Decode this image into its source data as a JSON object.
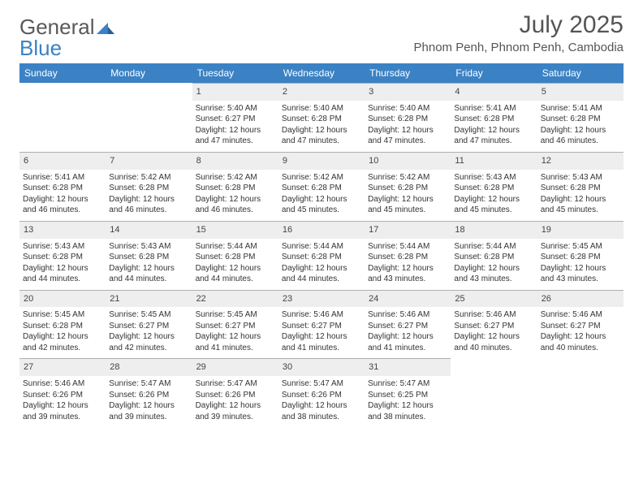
{
  "logo": {
    "line1": "General",
    "line2": "Blue"
  },
  "header": {
    "title": "July 2025",
    "location": "Phnom Penh, Phnom Penh, Cambodia"
  },
  "colors": {
    "header_bg": "#3b82c4",
    "header_text": "#ffffff",
    "daynum_bg": "#eeeeee",
    "daynum_border": "#b0b0b0",
    "text": "#333333",
    "title_text": "#555555"
  },
  "weekdays": [
    "Sunday",
    "Monday",
    "Tuesday",
    "Wednesday",
    "Thursday",
    "Friday",
    "Saturday"
  ],
  "weeks": [
    [
      null,
      null,
      {
        "n": "1",
        "sr": "Sunrise: 5:40 AM",
        "ss": "Sunset: 6:27 PM",
        "dl1": "Daylight: 12 hours",
        "dl2": "and 47 minutes."
      },
      {
        "n": "2",
        "sr": "Sunrise: 5:40 AM",
        "ss": "Sunset: 6:28 PM",
        "dl1": "Daylight: 12 hours",
        "dl2": "and 47 minutes."
      },
      {
        "n": "3",
        "sr": "Sunrise: 5:40 AM",
        "ss": "Sunset: 6:28 PM",
        "dl1": "Daylight: 12 hours",
        "dl2": "and 47 minutes."
      },
      {
        "n": "4",
        "sr": "Sunrise: 5:41 AM",
        "ss": "Sunset: 6:28 PM",
        "dl1": "Daylight: 12 hours",
        "dl2": "and 47 minutes."
      },
      {
        "n": "5",
        "sr": "Sunrise: 5:41 AM",
        "ss": "Sunset: 6:28 PM",
        "dl1": "Daylight: 12 hours",
        "dl2": "and 46 minutes."
      }
    ],
    [
      {
        "n": "6",
        "sr": "Sunrise: 5:41 AM",
        "ss": "Sunset: 6:28 PM",
        "dl1": "Daylight: 12 hours",
        "dl2": "and 46 minutes."
      },
      {
        "n": "7",
        "sr": "Sunrise: 5:42 AM",
        "ss": "Sunset: 6:28 PM",
        "dl1": "Daylight: 12 hours",
        "dl2": "and 46 minutes."
      },
      {
        "n": "8",
        "sr": "Sunrise: 5:42 AM",
        "ss": "Sunset: 6:28 PM",
        "dl1": "Daylight: 12 hours",
        "dl2": "and 46 minutes."
      },
      {
        "n": "9",
        "sr": "Sunrise: 5:42 AM",
        "ss": "Sunset: 6:28 PM",
        "dl1": "Daylight: 12 hours",
        "dl2": "and 45 minutes."
      },
      {
        "n": "10",
        "sr": "Sunrise: 5:42 AM",
        "ss": "Sunset: 6:28 PM",
        "dl1": "Daylight: 12 hours",
        "dl2": "and 45 minutes."
      },
      {
        "n": "11",
        "sr": "Sunrise: 5:43 AM",
        "ss": "Sunset: 6:28 PM",
        "dl1": "Daylight: 12 hours",
        "dl2": "and 45 minutes."
      },
      {
        "n": "12",
        "sr": "Sunrise: 5:43 AM",
        "ss": "Sunset: 6:28 PM",
        "dl1": "Daylight: 12 hours",
        "dl2": "and 45 minutes."
      }
    ],
    [
      {
        "n": "13",
        "sr": "Sunrise: 5:43 AM",
        "ss": "Sunset: 6:28 PM",
        "dl1": "Daylight: 12 hours",
        "dl2": "and 44 minutes."
      },
      {
        "n": "14",
        "sr": "Sunrise: 5:43 AM",
        "ss": "Sunset: 6:28 PM",
        "dl1": "Daylight: 12 hours",
        "dl2": "and 44 minutes."
      },
      {
        "n": "15",
        "sr": "Sunrise: 5:44 AM",
        "ss": "Sunset: 6:28 PM",
        "dl1": "Daylight: 12 hours",
        "dl2": "and 44 minutes."
      },
      {
        "n": "16",
        "sr": "Sunrise: 5:44 AM",
        "ss": "Sunset: 6:28 PM",
        "dl1": "Daylight: 12 hours",
        "dl2": "and 44 minutes."
      },
      {
        "n": "17",
        "sr": "Sunrise: 5:44 AM",
        "ss": "Sunset: 6:28 PM",
        "dl1": "Daylight: 12 hours",
        "dl2": "and 43 minutes."
      },
      {
        "n": "18",
        "sr": "Sunrise: 5:44 AM",
        "ss": "Sunset: 6:28 PM",
        "dl1": "Daylight: 12 hours",
        "dl2": "and 43 minutes."
      },
      {
        "n": "19",
        "sr": "Sunrise: 5:45 AM",
        "ss": "Sunset: 6:28 PM",
        "dl1": "Daylight: 12 hours",
        "dl2": "and 43 minutes."
      }
    ],
    [
      {
        "n": "20",
        "sr": "Sunrise: 5:45 AM",
        "ss": "Sunset: 6:28 PM",
        "dl1": "Daylight: 12 hours",
        "dl2": "and 42 minutes."
      },
      {
        "n": "21",
        "sr": "Sunrise: 5:45 AM",
        "ss": "Sunset: 6:27 PM",
        "dl1": "Daylight: 12 hours",
        "dl2": "and 42 minutes."
      },
      {
        "n": "22",
        "sr": "Sunrise: 5:45 AM",
        "ss": "Sunset: 6:27 PM",
        "dl1": "Daylight: 12 hours",
        "dl2": "and 41 minutes."
      },
      {
        "n": "23",
        "sr": "Sunrise: 5:46 AM",
        "ss": "Sunset: 6:27 PM",
        "dl1": "Daylight: 12 hours",
        "dl2": "and 41 minutes."
      },
      {
        "n": "24",
        "sr": "Sunrise: 5:46 AM",
        "ss": "Sunset: 6:27 PM",
        "dl1": "Daylight: 12 hours",
        "dl2": "and 41 minutes."
      },
      {
        "n": "25",
        "sr": "Sunrise: 5:46 AM",
        "ss": "Sunset: 6:27 PM",
        "dl1": "Daylight: 12 hours",
        "dl2": "and 40 minutes."
      },
      {
        "n": "26",
        "sr": "Sunrise: 5:46 AM",
        "ss": "Sunset: 6:27 PM",
        "dl1": "Daylight: 12 hours",
        "dl2": "and 40 minutes."
      }
    ],
    [
      {
        "n": "27",
        "sr": "Sunrise: 5:46 AM",
        "ss": "Sunset: 6:26 PM",
        "dl1": "Daylight: 12 hours",
        "dl2": "and 39 minutes."
      },
      {
        "n": "28",
        "sr": "Sunrise: 5:47 AM",
        "ss": "Sunset: 6:26 PM",
        "dl1": "Daylight: 12 hours",
        "dl2": "and 39 minutes."
      },
      {
        "n": "29",
        "sr": "Sunrise: 5:47 AM",
        "ss": "Sunset: 6:26 PM",
        "dl1": "Daylight: 12 hours",
        "dl2": "and 39 minutes."
      },
      {
        "n": "30",
        "sr": "Sunrise: 5:47 AM",
        "ss": "Sunset: 6:26 PM",
        "dl1": "Daylight: 12 hours",
        "dl2": "and 38 minutes."
      },
      {
        "n": "31",
        "sr": "Sunrise: 5:47 AM",
        "ss": "Sunset: 6:25 PM",
        "dl1": "Daylight: 12 hours",
        "dl2": "and 38 minutes."
      },
      null,
      null
    ]
  ]
}
